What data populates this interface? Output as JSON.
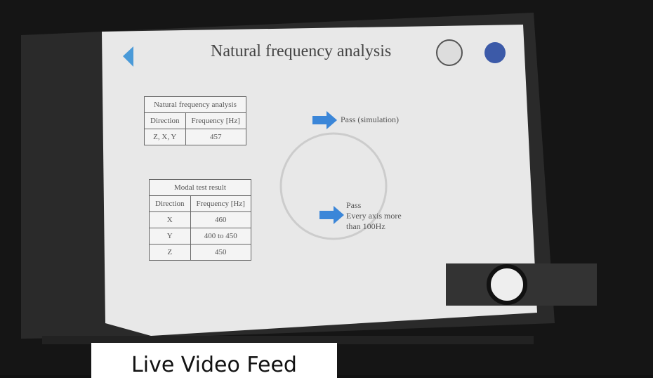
{
  "slide": {
    "title": "Natural frequency analysis",
    "table1": {
      "title": "Natural frequency analysis",
      "headers": [
        "Direction",
        "Frequency [Hz]"
      ],
      "rows": [
        [
          "Z, X, Y",
          "457"
        ]
      ]
    },
    "result1": "Pass (simulation)",
    "table2": {
      "title": "Modal test result",
      "headers": [
        "Direction",
        "Frequency [Hz]"
      ],
      "rows": [
        [
          "X",
          "460"
        ],
        [
          "Y",
          "400 to 450"
        ],
        [
          "Z",
          "450"
        ]
      ]
    },
    "result2": [
      "Pass",
      "Every axis more",
      "than 100Hz"
    ]
  },
  "overlay": {
    "label": "Live Video Feed"
  }
}
